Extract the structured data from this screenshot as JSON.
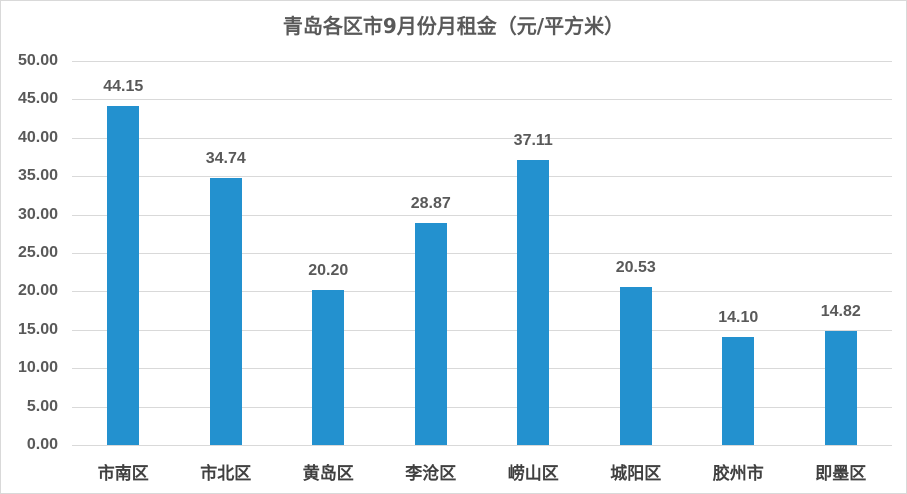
{
  "chart_data": {
    "type": "bar",
    "title": "青岛各区市9月份月租金（元/平方米）",
    "categories": [
      "市南区",
      "市北区",
      "黄岛区",
      "李沧区",
      "崂山区",
      "城阳区",
      "胶州市",
      "即墨区"
    ],
    "values": [
      44.15,
      34.74,
      20.2,
      28.87,
      37.11,
      20.53,
      14.1,
      14.82
    ],
    "value_labels": [
      "44.15",
      "34.74",
      "20.20",
      "28.87",
      "37.11",
      "20.53",
      "14.10",
      "14.82"
    ],
    "xlabel": "",
    "ylabel": "",
    "ylim": [
      0,
      50
    ],
    "yticks": [
      "0.00",
      "5.00",
      "10.00",
      "15.00",
      "20.00",
      "25.00",
      "30.00",
      "35.00",
      "40.00",
      "45.00",
      "50.00"
    ],
    "grid": true,
    "legend": "none",
    "bar_color": "#2391cf"
  }
}
